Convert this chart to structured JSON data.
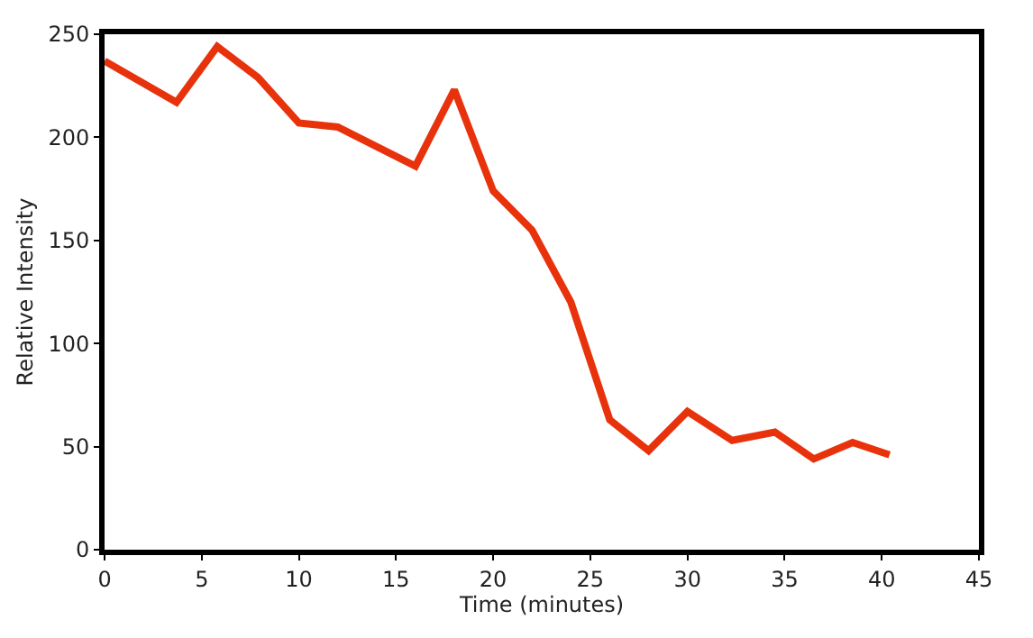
{
  "chart_data": {
    "type": "line",
    "xlabel": "Time (minutes)",
    "ylabel": "Relative Intensity",
    "x": [
      0,
      3.7,
      5.8,
      7.9,
      10,
      12,
      16,
      18,
      20,
      22,
      24,
      26,
      28,
      30,
      32.3,
      34.5,
      36.5,
      38.5,
      40.4
    ],
    "series": [
      {
        "color": "#e8320c",
        "values": [
          237,
          217,
          244,
          229,
          207,
          205,
          186,
          223,
          174,
          155,
          120,
          63,
          48,
          67,
          53,
          57,
          44,
          52,
          46
        ]
      }
    ],
    "xlim": [
      0,
      45
    ],
    "xticks": [
      0,
      5,
      10,
      15,
      20,
      25,
      30,
      35,
      40,
      45
    ],
    "ylim": [
      0,
      250
    ],
    "yticks": [
      0,
      50,
      100,
      150,
      200,
      250
    ],
    "marker": "none",
    "line_style": "solid"
  }
}
